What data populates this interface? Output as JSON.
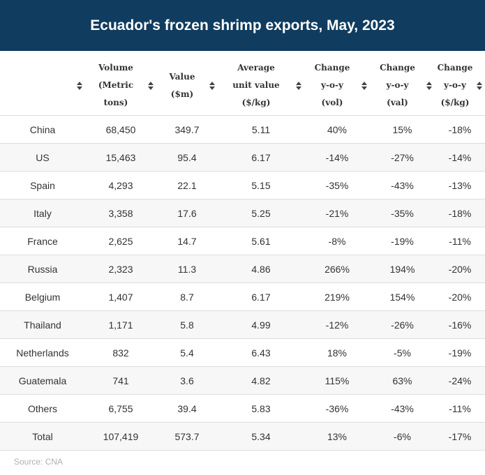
{
  "title": "Ecuador's frozen shrimp exports, May, 2023",
  "source": "Source: CNA",
  "chart_data": {
    "type": "table",
    "title": "Ecuador's frozen shrimp exports, May, 2023",
    "columns": [
      "",
      "Volume\n(Metric\ntons)",
      "Value\n($m)",
      "Average\nunit value\n($/kg)",
      "Change\ny-o-y\n(vol)",
      "Change\ny-o-y\n(val)",
      "Change\ny-o-y\n($/kg)"
    ],
    "rows": [
      [
        "China",
        "68,450",
        "349.7",
        "5.11",
        "40%",
        "15%",
        "-18%"
      ],
      [
        "US",
        "15,463",
        "95.4",
        "6.17",
        "-14%",
        "-27%",
        "-14%"
      ],
      [
        "Spain",
        "4,293",
        "22.1",
        "5.15",
        "-35%",
        "-43%",
        "-13%"
      ],
      [
        "Italy",
        "3,358",
        "17.6",
        "5.25",
        "-21%",
        "-35%",
        "-18%"
      ],
      [
        "France",
        "2,625",
        "14.7",
        "5.61",
        "-8%",
        "-19%",
        "-11%"
      ],
      [
        "Russia",
        "2,323",
        "11.3",
        "4.86",
        "266%",
        "194%",
        "-20%"
      ],
      [
        "Belgium",
        "1,407",
        "8.7",
        "6.17",
        "219%",
        "154%",
        "-20%"
      ],
      [
        "Thailand",
        "1,171",
        "5.8",
        "4.99",
        "-12%",
        "-26%",
        "-16%"
      ],
      [
        "Netherlands",
        "832",
        "5.4",
        "6.43",
        "18%",
        "-5%",
        "-19%"
      ],
      [
        "Guatemala",
        "741",
        "3.6",
        "4.82",
        "115%",
        "63%",
        "-24%"
      ],
      [
        "Others",
        "6,755",
        "39.4",
        "5.83",
        "-36%",
        "-43%",
        "-11%"
      ],
      [
        "Total",
        "107,419",
        "573.7",
        "5.34",
        "13%",
        "-6%",
        "-17%"
      ]
    ]
  },
  "colors": {
    "header_bg": "#0f3c5f",
    "header_text": "#ffffff",
    "stripe": "#f7f7f7",
    "border": "#dddddd",
    "source_text": "#b0b0b0"
  }
}
